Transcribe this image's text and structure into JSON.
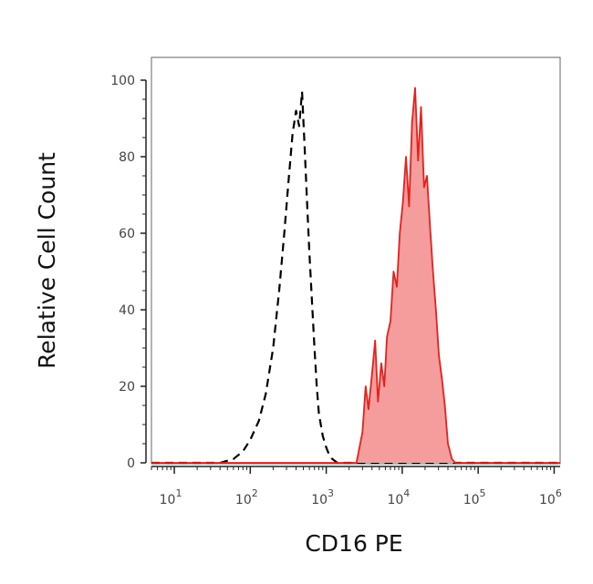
{
  "chart_data": {
    "type": "area",
    "title": "",
    "xlabel": "CD16 PE",
    "ylabel": "Relative Cell Count",
    "x_scale": "log",
    "xlim": [
      5,
      1200000
    ],
    "ylim": [
      0,
      100
    ],
    "x_ticks": [
      {
        "label_base": "10",
        "label_exp": "1",
        "value": 10
      },
      {
        "label_base": "10",
        "label_exp": "2",
        "value": 100
      },
      {
        "label_base": "10",
        "label_exp": "3",
        "value": 1000
      },
      {
        "label_base": "10",
        "label_exp": "4",
        "value": 10000
      },
      {
        "label_base": "10",
        "label_exp": "5",
        "value": 100000
      },
      {
        "label_base": "10",
        "label_exp": "6",
        "value": 1000000
      }
    ],
    "y_ticks": [
      "0",
      "20",
      "40",
      "60",
      "80",
      "100"
    ],
    "grid": false,
    "legend": "none",
    "series": [
      {
        "style": "dashed",
        "color": "#000000",
        "fill": "none",
        "x": [
          5,
          40,
          60,
          80,
          100,
          130,
          160,
          200,
          240,
          280,
          320,
          360,
          400,
          440,
          480,
          520,
          560,
          600,
          650,
          700,
          750,
          800,
          900,
          1000,
          1100,
          1200,
          1400,
          1600,
          2000,
          1200000
        ],
        "y": [
          0,
          0,
          1,
          3,
          6,
          11,
          18,
          30,
          45,
          60,
          74,
          86,
          92,
          88,
          97,
          82,
          68,
          55,
          42,
          30,
          20,
          13,
          7,
          4,
          2,
          1,
          0,
          0,
          0,
          0
        ]
      },
      {
        "style": "solid",
        "color": "#e8201c",
        "fill": "#f59c9c",
        "x": [
          5,
          2500,
          3000,
          3300,
          3600,
          4000,
          4400,
          4800,
          5300,
          5800,
          6300,
          7000,
          7700,
          8500,
          9300,
          10200,
          11200,
          12300,
          13500,
          14800,
          16200,
          17700,
          19400,
          21200,
          23200,
          25400,
          27800,
          30400,
          33300,
          36400,
          40000,
          45000,
          50000,
          1200000
        ],
        "y": [
          0,
          0,
          8,
          20,
          14,
          23,
          32,
          16,
          26,
          20,
          33,
          37,
          50,
          46,
          60,
          68,
          80,
          67,
          89,
          98,
          79,
          93,
          72,
          75,
          62,
          50,
          40,
          28,
          22,
          15,
          5,
          1,
          0,
          0
        ]
      }
    ]
  }
}
